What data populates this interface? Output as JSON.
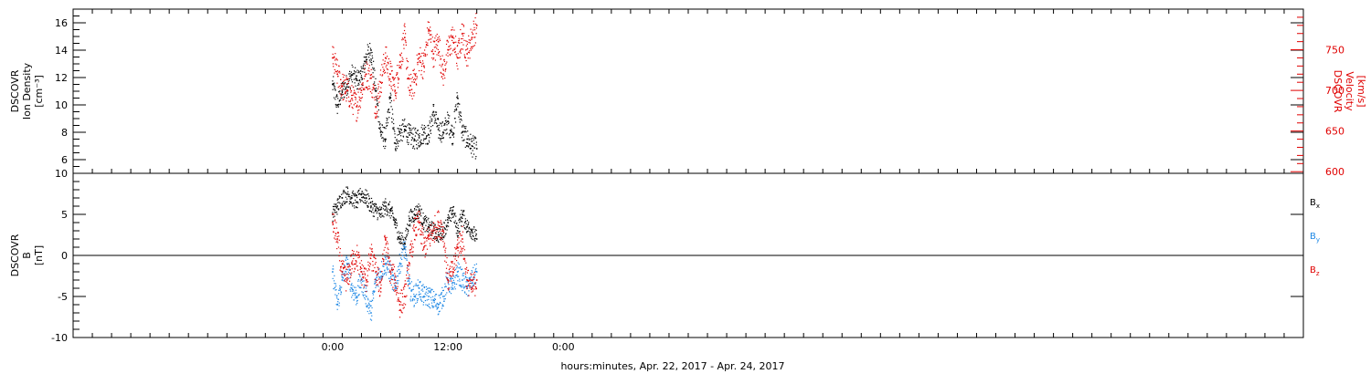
{
  "chart_data": [
    {
      "type": "scatter",
      "panel": "top",
      "ylabel_lines": [
        "DSCOVR",
        "Ion Density",
        "[cm⁻³]"
      ],
      "y2label_lines": [
        "DSCOVR",
        "Velocity",
        "[km/s]"
      ],
      "yticks": [
        "6",
        "8",
        "10",
        "12",
        "14",
        "16"
      ],
      "y2ticks": [
        "600",
        "650",
        "700",
        "750"
      ],
      "ylim": [
        5,
        17
      ],
      "y2lim": [
        598,
        800
      ],
      "x_range_hours": [
        -27,
        101
      ],
      "series": [
        {
          "color": "#000000",
          "axis": "left",
          "x_hours": [
            0,
            0.5,
            1,
            1.5,
            2,
            2.5,
            3,
            3.5,
            4,
            4.5,
            5,
            5.5,
            6,
            6.5,
            7,
            7.5,
            8,
            8.5,
            9,
            9.5,
            10,
            10.5,
            11,
            11.5,
            12,
            12.5,
            13,
            13.5,
            14,
            14.5,
            15
          ],
          "values": [
            11.5,
            10.0,
            11.0,
            11.5,
            12.2,
            11.8,
            12.0,
            13.5,
            14.0,
            11.0,
            8.0,
            7.5,
            10.5,
            7.2,
            8.0,
            8.2,
            7.8,
            7.5,
            7.6,
            8.0,
            7.8,
            9.5,
            8.2,
            8.0,
            8.8,
            7.8,
            10.5,
            8.0,
            7.5,
            7.0,
            6.8
          ]
        },
        {
          "color": "#e00000",
          "axis": "right",
          "x_hours": [
            0,
            0.5,
            1,
            1.5,
            2,
            2.5,
            3,
            3.5,
            4,
            4.5,
            5,
            5.5,
            6,
            6.5,
            7,
            7.5,
            8,
            8.5,
            9,
            9.5,
            10,
            10.5,
            11,
            11.5,
            12,
            12.5,
            13,
            13.5,
            14,
            14.5,
            15
          ],
          "values": [
            740,
            720,
            705,
            700,
            690,
            680,
            700,
            720,
            715,
            680,
            710,
            740,
            720,
            700,
            735,
            765,
            700,
            710,
            740,
            730,
            775,
            745,
            760,
            720,
            750,
            765,
            740,
            770,
            745,
            765,
            780
          ]
        }
      ]
    },
    {
      "type": "scatter",
      "panel": "bottom",
      "ylabel_lines": [
        "DSCOVR",
        "B",
        "[nT]"
      ],
      "yticks": [
        "-10",
        "-5",
        "0",
        "5",
        "10"
      ],
      "ylim": [
        -10,
        10
      ],
      "x_range_hours": [
        -27,
        101
      ],
      "xticks": [
        {
          "hour": 0,
          "label": "0:00"
        },
        {
          "hour": 12,
          "label": "12:00"
        },
        {
          "hour": 24,
          "label": "0:00"
        }
      ],
      "xlabel": "hours:minutes, Apr. 22, 2017 - Apr. 24, 2017",
      "legend": [
        {
          "name": "B",
          "sub": "x",
          "color": "#000000"
        },
        {
          "name": "B",
          "sub": "y",
          "color": "#1e88e5"
        },
        {
          "name": "B",
          "sub": "z",
          "color": "#e00000"
        }
      ],
      "series": [
        {
          "name": "Bx",
          "color": "#000000",
          "x_hours": [
            0,
            0.5,
            1,
            1.5,
            2,
            2.5,
            3,
            3.5,
            4,
            4.5,
            5,
            5.5,
            6,
            6.5,
            7,
            7.5,
            8,
            8.5,
            9,
            9.5,
            10,
            10.5,
            11,
            11.5,
            12,
            12.5,
            13,
            13.5,
            14,
            14.5,
            15
          ],
          "values": [
            5,
            6,
            7,
            7.5,
            7,
            6.5,
            7.5,
            7,
            6,
            5.5,
            5,
            6,
            5.5,
            4,
            2,
            1.5,
            4.5,
            5,
            5.5,
            4,
            3.5,
            3,
            2.5,
            3,
            4,
            5.5,
            3,
            5,
            3.5,
            3,
            2
          ]
        },
        {
          "name": "By",
          "color": "#1e88e5",
          "x_hours": [
            0,
            0.5,
            1,
            1.5,
            2,
            2.5,
            3,
            3.5,
            4,
            4.5,
            5,
            5.5,
            6,
            6.5,
            7,
            7.5,
            8,
            8.5,
            9,
            9.5,
            10,
            10.5,
            11,
            11.5,
            12,
            12.5,
            13,
            13.5,
            14,
            14.5,
            15
          ],
          "values": [
            -2,
            -6,
            -3,
            -1,
            -4,
            -5,
            -3,
            -5,
            -7,
            -3,
            -2,
            -1,
            -2,
            -4,
            -1,
            1,
            -4,
            -5,
            -4,
            -5,
            -5,
            -5.5,
            -6,
            -5,
            -3,
            -4,
            -2,
            -3,
            -4,
            -3,
            -2
          ]
        },
        {
          "name": "Bz",
          "color": "#e00000",
          "x_hours": [
            0,
            0.5,
            1,
            1.5,
            2,
            2.5,
            3,
            3.5,
            4,
            4.5,
            5,
            5.5,
            6,
            6.5,
            7,
            7.5,
            8,
            8.5,
            9,
            9.5,
            10,
            10.5,
            11,
            11.5,
            12,
            12.5,
            13,
            13.5,
            14,
            14.5,
            15
          ],
          "values": [
            4,
            2,
            -2,
            -3,
            -1,
            0,
            -2,
            -3,
            0,
            -2,
            -4,
            2,
            -2,
            -3,
            -6,
            -5,
            -1,
            3,
            4,
            1,
            2,
            3,
            4,
            3,
            -3,
            -2,
            1,
            2,
            -3,
            -4,
            -3
          ]
        }
      ]
    }
  ]
}
